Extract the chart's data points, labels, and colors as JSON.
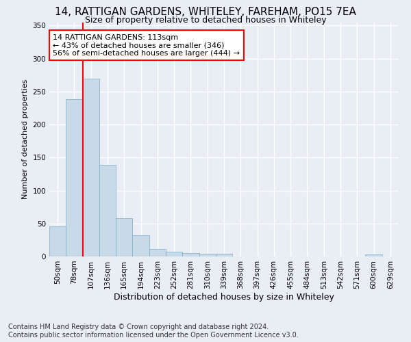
{
  "title_line1": "14, RATTIGAN GARDENS, WHITELEY, FAREHAM, PO15 7EA",
  "title_line2": "Size of property relative to detached houses in Whiteley",
  "xlabel": "Distribution of detached houses by size in Whiteley",
  "ylabel": "Number of detached properties",
  "footnote": "Contains HM Land Registry data © Crown copyright and database right 2024.\nContains public sector information licensed under the Open Government Licence v3.0.",
  "bin_labels": [
    "50sqm",
    "78sqm",
    "107sqm",
    "136sqm",
    "165sqm",
    "194sqm",
    "223sqm",
    "252sqm",
    "281sqm",
    "310sqm",
    "339sqm",
    "368sqm",
    "397sqm",
    "426sqm",
    "455sqm",
    "484sqm",
    "513sqm",
    "542sqm",
    "571sqm",
    "600sqm",
    "629sqm"
  ],
  "bar_values": [
    46,
    238,
    270,
    139,
    58,
    32,
    11,
    7,
    5,
    4,
    4,
    0,
    0,
    0,
    0,
    0,
    0,
    0,
    0,
    3,
    0
  ],
  "bar_color": "#c8d9e8",
  "bar_edge_color": "#7aaac8",
  "property_line_bin_index": 1.5,
  "annotation_text": "14 RATTIGAN GARDENS: 113sqm\n← 43% of detached houses are smaller (346)\n56% of semi-detached houses are larger (444) →",
  "annotation_box_color": "white",
  "annotation_box_edge": "red",
  "red_line_color": "red",
  "ylim": [
    0,
    355
  ],
  "yticks": [
    0,
    50,
    100,
    150,
    200,
    250,
    300,
    350
  ],
  "background_color": "#e8eef4",
  "grid_color": "white",
  "title_fontsize": 11,
  "subtitle_fontsize": 9,
  "ylabel_fontsize": 8,
  "xlabel_fontsize": 9,
  "footnote_fontsize": 7,
  "tick_fontsize": 7.5,
  "annot_fontsize": 8
}
